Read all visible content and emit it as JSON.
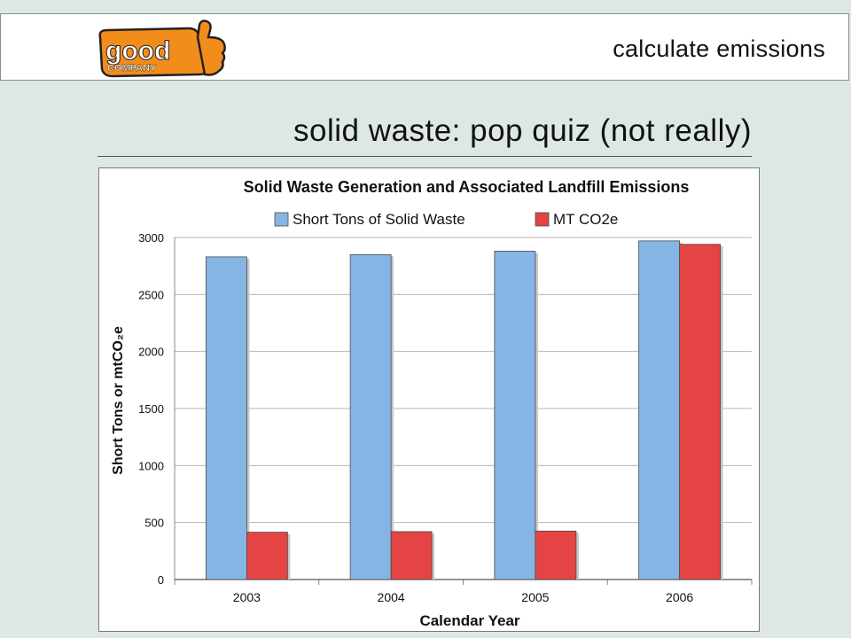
{
  "header": {
    "logo_text_top": "good",
    "logo_text_bottom": "COMPANY",
    "section_title": "calculate emissions"
  },
  "slide": {
    "title": "solid waste:  pop quiz (not really)"
  },
  "colors": {
    "background": "#dde7e6",
    "logo_orange": "#f28c1a",
    "series_blue": "#85b5e5",
    "series_red": "#e54444"
  },
  "chart_data": {
    "type": "bar",
    "title": "Solid Waste Generation and Associated Landfill Emissions",
    "xlabel": "Calendar Year",
    "ylabel": "Short Tons or mtCO₂e",
    "categories": [
      "2003",
      "2004",
      "2005",
      "2006"
    ],
    "series": [
      {
        "name": "Short Tons of Solid Waste",
        "color": "#85b5e5",
        "values": [
          2830,
          2850,
          2880,
          2970
        ]
      },
      {
        "name": "MT CO2e",
        "color": "#e54444",
        "values": [
          415,
          420,
          425,
          2940
        ]
      }
    ],
    "ylim": [
      0,
      3000
    ],
    "yticks": [
      0,
      500,
      1000,
      1500,
      2000,
      2500,
      3000
    ],
    "grid": true,
    "legend": "top"
  }
}
